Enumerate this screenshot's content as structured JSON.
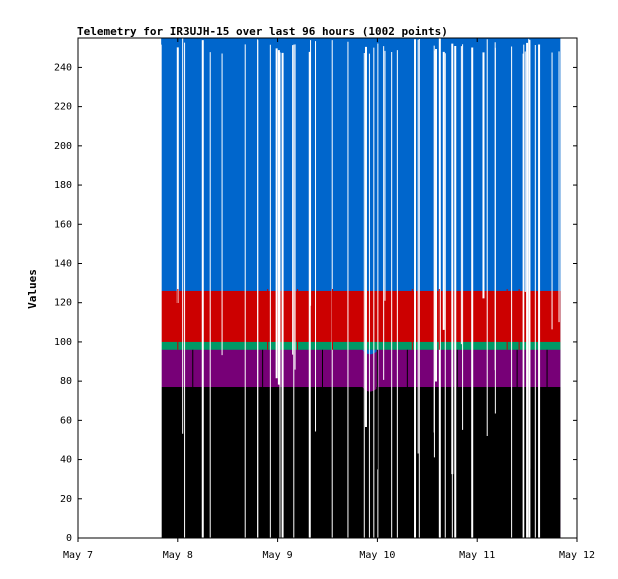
{
  "chart_data": {
    "type": "area",
    "title": "Telemetry for IR3UJH-15 over last 96 hours (1002 points)",
    "xlabel": "",
    "ylabel": "Values",
    "x_ticks": [
      "May 7",
      "May 8",
      "May 9",
      "May 10",
      "May 11",
      "May 12"
    ],
    "x_range": [
      "May 7",
      "May 12"
    ],
    "ylim": [
      0,
      255
    ],
    "y_ticks": [
      0,
      20,
      40,
      60,
      80,
      100,
      120,
      140,
      160,
      180,
      200,
      220,
      240
    ],
    "grid": false,
    "legend": "none",
    "data_start": "May 7 20:00",
    "data_end": "May 11 20:00",
    "series": [
      {
        "color": "#0066cc",
        "typical_value": 255
      },
      {
        "color": "#cc0000",
        "typical_value": 126
      },
      {
        "color": "#009966",
        "typical_value": 100
      },
      {
        "color": "#770077",
        "typical_value": 96
      },
      {
        "color": "#000000",
        "typical_value": 77
      }
    ]
  }
}
